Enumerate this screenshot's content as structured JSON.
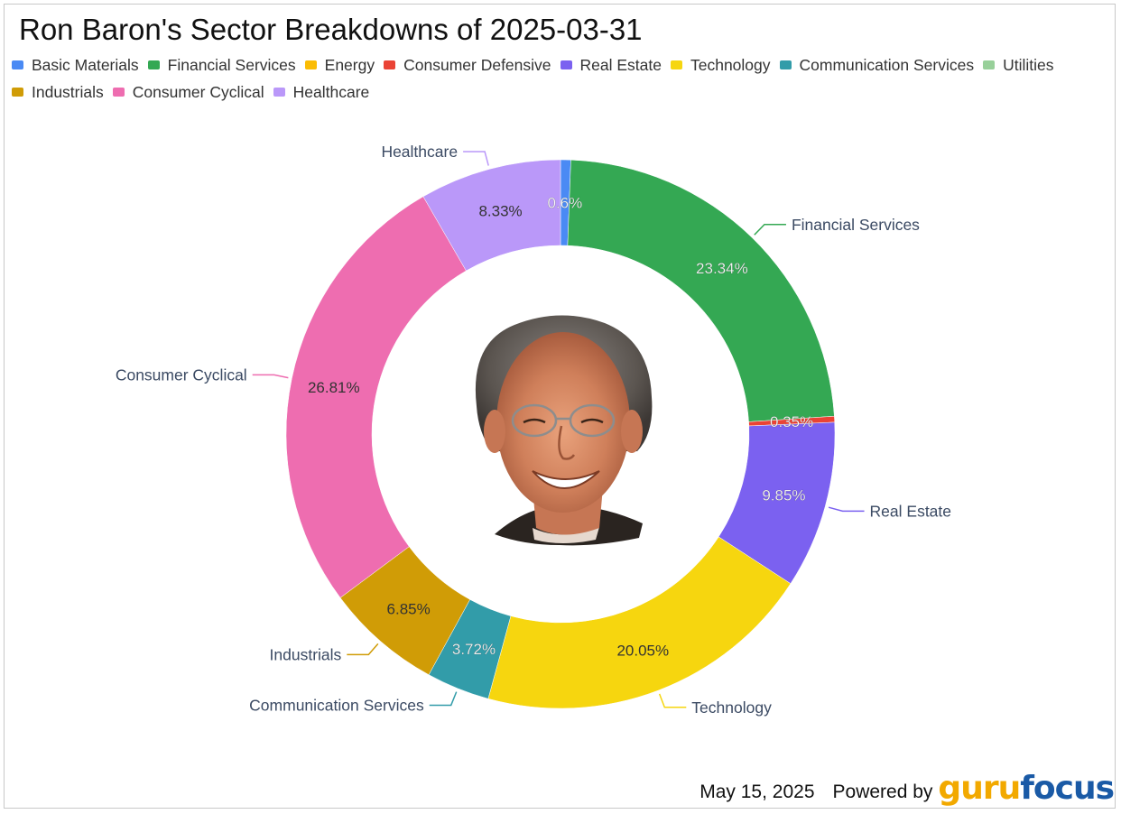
{
  "title": "Ron Baron's Sector Breakdowns of 2025-03-31",
  "footer": {
    "date": "May 15, 2025",
    "powered_by": "Powered by",
    "logo_part1": "guru",
    "logo_part2": "focus"
  },
  "chart_data": {
    "type": "donut",
    "title": "Ron Baron's Sector Breakdowns of 2025-03-31",
    "legend_position": "top",
    "legend": [
      {
        "name": "Basic Materials",
        "color": "#4a8af4"
      },
      {
        "name": "Financial Services",
        "color": "#34a853"
      },
      {
        "name": "Energy",
        "color": "#fbbc04"
      },
      {
        "name": "Consumer Defensive",
        "color": "#ea4335"
      },
      {
        "name": "Real Estate",
        "color": "#7b61f0"
      },
      {
        "name": "Technology",
        "color": "#f6d60f"
      },
      {
        "name": "Communication Services",
        "color": "#329ca9"
      },
      {
        "name": "Utilities",
        "color": "#98d09a"
      },
      {
        "name": "Industrials",
        "color": "#d09c06"
      },
      {
        "name": "Consumer Cyclical",
        "color": "#ee6db0"
      },
      {
        "name": "Healthcare",
        "color": "#ba98f9"
      }
    ],
    "slices": [
      {
        "name": "Basic Materials",
        "value": 0.6,
        "label": "0.6%",
        "color": "#4a8af4",
        "label_color": "#ffffff",
        "callout": false
      },
      {
        "name": "Financial Services",
        "value": 23.34,
        "label": "23.34%",
        "color": "#34a853",
        "label_color": "#ffffff",
        "callout": true
      },
      {
        "name": "Consumer Defensive",
        "value": 0.35,
        "label": "0.35%",
        "color": "#ea4335",
        "label_color": "#ffffff",
        "callout": false
      },
      {
        "name": "Real Estate",
        "value": 9.85,
        "label": "9.85%",
        "color": "#7b61f0",
        "label_color": "#ffffff",
        "callout": true
      },
      {
        "name": "Technology",
        "value": 20.05,
        "label": "20.05%",
        "color": "#f6d60f",
        "label_color": "#333333",
        "callout": true
      },
      {
        "name": "Communication Services",
        "value": 3.72,
        "label": "3.72%",
        "color": "#329ca9",
        "label_color": "#ffffff",
        "callout": true
      },
      {
        "name": "Industrials",
        "value": 6.85,
        "label": "6.85%",
        "color": "#d09c06",
        "label_color": "#333333",
        "callout": true
      },
      {
        "name": "Consumer Cyclical",
        "value": 26.81,
        "label": "26.81%",
        "color": "#ee6db0",
        "label_color": "#333333",
        "callout": true
      },
      {
        "name": "Healthcare",
        "value": 8.33,
        "label": "8.33%",
        "color": "#ba98f9",
        "label_color": "#333333",
        "callout": true
      }
    ],
    "center_image": "investor-portrait"
  }
}
